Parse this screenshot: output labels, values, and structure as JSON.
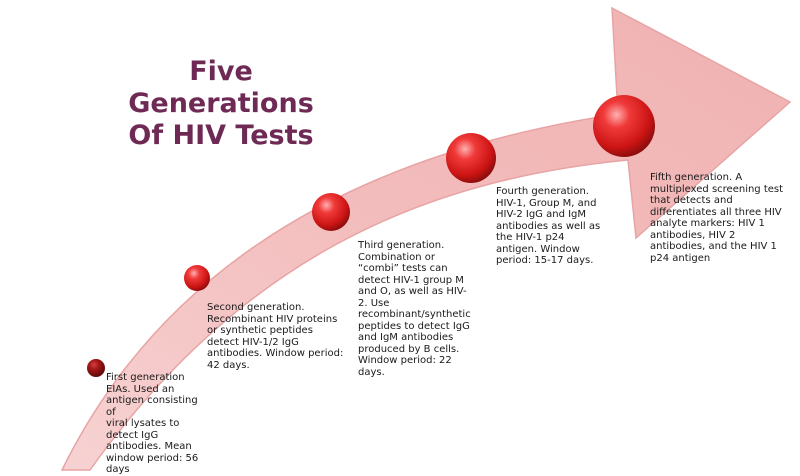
{
  "title": {
    "line1": "Five Generations",
    "line2": "Of HIV Tests"
  },
  "colors": {
    "title": "#6e2a54",
    "arrow_fill": "#f4c3c3",
    "arrow_edge": "#e8a4a4",
    "circle_red": "#e21c1c",
    "circle_dark": "#8b0d0d"
  },
  "generations": [
    {
      "label": "First generation",
      "text": "First generation\nEIAs. Used an\nantigen consisting of\nviral lysates to\ndetect IgG\nantibodies.  Mean\nwindow period: 56\ndays"
    },
    {
      "label": "Second generation",
      "text": "Second generation.\nRecombinant HIV proteins\nor synthetic peptides\ndetect HIV-1/2 IgG\nantibodies. Window period:\n42 days."
    },
    {
      "label": "Third generation",
      "text": "Third generation.\nCombination or\n“combi” tests can\ndetect HIV-1 group M\nand O, as well as HIV-\n2. Use\nrecombinant/synthetic\npeptides to detect IgG\nand IgM antibodies\nproduced by B cells.\nWindow period: 22\ndays."
    },
    {
      "label": "Fourth generation",
      "text": "Fourth generation.\nHIV-1, Group M, and\nHIV-2 IgG and IgM\nantibodies as well as\nthe HIV-1 p24\nantigen. Window\nperiod: 15-17 days."
    },
    {
      "label": "Fifth generation",
      "text": "Fifth generation. A\nmultiplexed screening test\nthat detects and\ndifferentiates all three HIV\nanalyte markers:  HIV 1\nantibodies, HIV 2\nantibodies, and the HIV 1\np24 antigen"
    }
  ]
}
